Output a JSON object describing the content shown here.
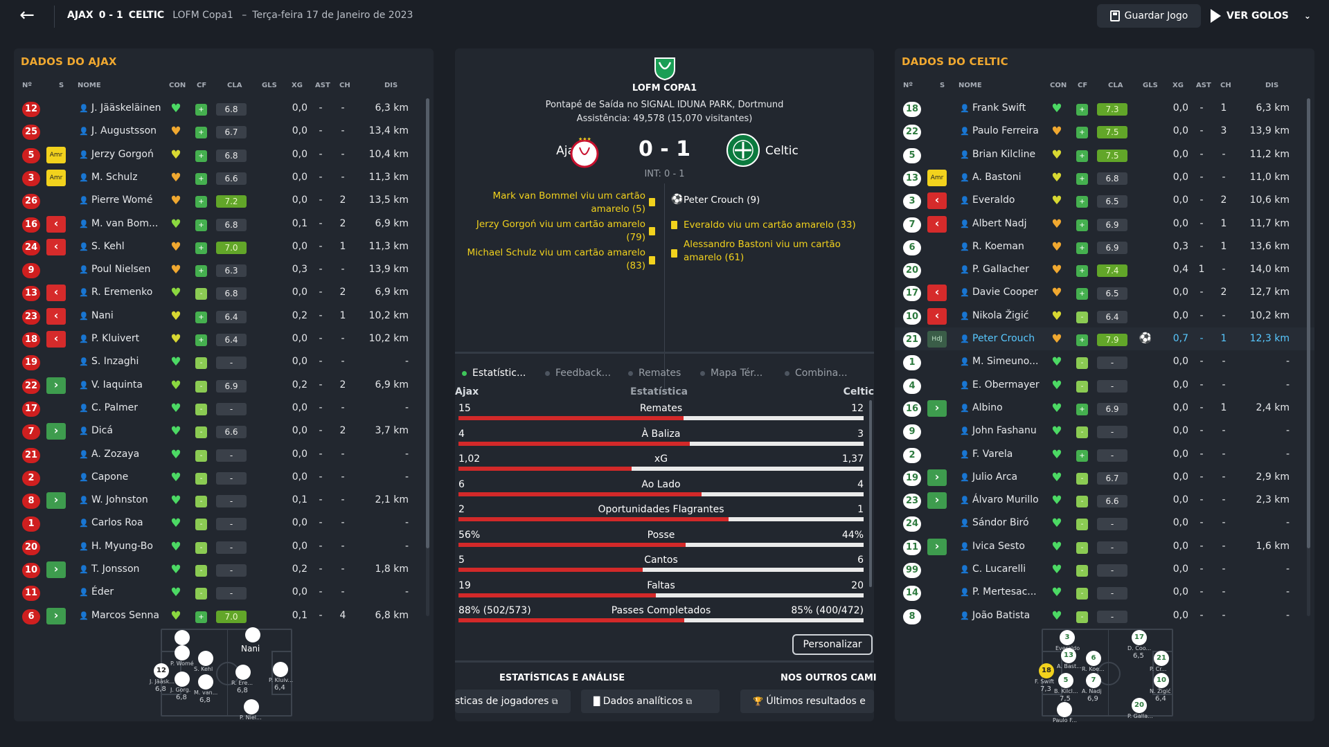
{
  "header": {
    "back_icon": "arrow-left-icon",
    "home": "AJAX",
    "score": "0 - 1",
    "away": "CELTIC",
    "competition": "LOFM Copa1",
    "separator": "–",
    "date": "Terça-feira 17 de Janeiro de 2023",
    "save_label": "Guardar Jogo",
    "goals_label": "VER GOLOS"
  },
  "columns": {
    "num": "Nº",
    "s": "S",
    "name": "NOME",
    "con": "CON",
    "cf": "CF",
    "cla": "CLA",
    "gls": "GLS",
    "xg": "XG",
    "ast": "AST",
    "ch": "CH",
    "dis": "DIS"
  },
  "ajax": {
    "title": "DADOS DO AJAX",
    "players": [
      {
        "num": "12",
        "s": "",
        "name": "J. Jääskeläinen",
        "con": "#4cd964",
        "cf": "+",
        "cla": "6.8",
        "hi": false,
        "gls": "",
        "xg": "0,0",
        "ast": "-",
        "ch": "-",
        "dis": "6,3 km"
      },
      {
        "num": "25",
        "s": "",
        "name": "J. Augustsson",
        "con": "#f0a830",
        "cf": "+",
        "cla": "6.7",
        "hi": false,
        "gls": "",
        "xg": "0,0",
        "ast": "-",
        "ch": "-",
        "dis": "13,4 km"
      },
      {
        "num": "5",
        "s": "Amr",
        "name": "Jerzy Gorgoń",
        "con": "#d8d832",
        "cf": "+",
        "cla": "6.8",
        "hi": false,
        "gls": "",
        "xg": "0,0",
        "ast": "-",
        "ch": "-",
        "dis": "10,4 km"
      },
      {
        "num": "3",
        "s": "Amr",
        "name": "M. Schulz",
        "con": "#f0a830",
        "cf": "+",
        "cla": "6.6",
        "hi": false,
        "gls": "",
        "xg": "0,0",
        "ast": "-",
        "ch": "-",
        "dis": "11,3 km"
      },
      {
        "num": "26",
        "s": "",
        "name": "Pierre Womé",
        "con": "#f0a830",
        "cf": "+",
        "cla": "7.2",
        "hi": true,
        "gls": "",
        "xg": "0,0",
        "ast": "-",
        "ch": "2",
        "dis": "13,5 km"
      },
      {
        "num": "16",
        "s": "<",
        "name": "M. van Bom...",
        "con": "#8bd840",
        "cf": "+",
        "cla": "6.8",
        "hi": false,
        "gls": "",
        "xg": "0,1",
        "ast": "-",
        "ch": "2",
        "dis": "6,9 km"
      },
      {
        "num": "24",
        "s": "<",
        "name": "S. Kehl",
        "con": "#f0a830",
        "cf": "+",
        "cla": "7.0",
        "hi": true,
        "gls": "",
        "xg": "0,0",
        "ast": "-",
        "ch": "1",
        "dis": "11,3 km"
      },
      {
        "num": "9",
        "s": "",
        "name": "Poul Nielsen",
        "con": "#f0a830",
        "cf": "+",
        "cla": "6.3",
        "hi": false,
        "gls": "",
        "xg": "0,3",
        "ast": "-",
        "ch": "-",
        "dis": "13,9 km"
      },
      {
        "num": "13",
        "s": "<",
        "name": "R. Eremenko",
        "con": "#8bd840",
        "cf": "-",
        "cla": "6.8",
        "hi": false,
        "gls": "",
        "xg": "0,0",
        "ast": "-",
        "ch": "2",
        "dis": "6,9 km"
      },
      {
        "num": "23",
        "s": "<",
        "name": "Nani",
        "con": "#d8d832",
        "cf": "+",
        "cla": "6.4",
        "hi": false,
        "gls": "",
        "xg": "0,2",
        "ast": "-",
        "ch": "1",
        "dis": "10,2 km"
      },
      {
        "num": "18",
        "s": "<",
        "name": "P. Kluivert",
        "con": "#d8d832",
        "cf": "+",
        "cla": "6.4",
        "hi": false,
        "gls": "",
        "xg": "0,0",
        "ast": "-",
        "ch": "-",
        "dis": "10,2 km"
      },
      {
        "num": "19",
        "s": "",
        "name": "S. Inzaghi",
        "con": "#4cd964",
        "cf": "-",
        "cla": "-",
        "hi": false,
        "gls": "",
        "xg": "0,0",
        "ast": "-",
        "ch": "-",
        "dis": "-"
      },
      {
        "num": "22",
        "s": ">",
        "name": "V. Iaquinta",
        "con": "#8bd840",
        "cf": "-",
        "cla": "6.9",
        "hi": false,
        "gls": "",
        "xg": "0,2",
        "ast": "-",
        "ch": "2",
        "dis": "6,9 km"
      },
      {
        "num": "17",
        "s": "",
        "name": "C. Palmer",
        "con": "#4cd964",
        "cf": "-",
        "cla": "-",
        "hi": false,
        "gls": "",
        "xg": "0,0",
        "ast": "-",
        "ch": "-",
        "dis": "-"
      },
      {
        "num": "7",
        "s": ">",
        "name": "Dicá",
        "con": "#4cd964",
        "cf": "-",
        "cla": "6.6",
        "hi": false,
        "gls": "",
        "xg": "0,0",
        "ast": "-",
        "ch": "2",
        "dis": "3,7 km"
      },
      {
        "num": "21",
        "s": "",
        "name": "A. Zozaya",
        "con": "#4cd964",
        "cf": "-",
        "cla": "-",
        "hi": false,
        "gls": "",
        "xg": "0,0",
        "ast": "-",
        "ch": "-",
        "dis": "-"
      },
      {
        "num": "2",
        "s": "",
        "name": "Capone",
        "con": "#4cd964",
        "cf": "-",
        "cla": "-",
        "hi": false,
        "gls": "",
        "xg": "0,0",
        "ast": "-",
        "ch": "-",
        "dis": "-"
      },
      {
        "num": "8",
        "s": ">",
        "name": "W. Johnston",
        "con": "#4cd964",
        "cf": "-",
        "cla": "-",
        "hi": false,
        "gls": "",
        "xg": "0,1",
        "ast": "-",
        "ch": "-",
        "dis": "2,1 km"
      },
      {
        "num": "1",
        "s": "",
        "name": "Carlos Roa",
        "con": "#4cd964",
        "cf": "-",
        "cla": "-",
        "hi": false,
        "gls": "",
        "xg": "0,0",
        "ast": "-",
        "ch": "-",
        "dis": "-"
      },
      {
        "num": "20",
        "s": "",
        "name": "H. Myung-Bo",
        "con": "#4cd964",
        "cf": "-",
        "cla": "-",
        "hi": false,
        "gls": "",
        "xg": "0,0",
        "ast": "-",
        "ch": "-",
        "dis": "-"
      },
      {
        "num": "10",
        "s": ">",
        "name": "T. Jonsson",
        "con": "#4cd964",
        "cf": "-",
        "cla": "-",
        "hi": false,
        "gls": "",
        "xg": "0,2",
        "ast": "-",
        "ch": "-",
        "dis": "1,8 km"
      },
      {
        "num": "11",
        "s": "",
        "name": "Éder",
        "con": "#4cd964",
        "cf": "-",
        "cla": "-",
        "hi": false,
        "gls": "",
        "xg": "0,0",
        "ast": "-",
        "ch": "-",
        "dis": "-"
      },
      {
        "num": "6",
        "s": ">",
        "name": "Marcos Senna",
        "con": "#8bd840",
        "cf": "+",
        "cla": "7.0",
        "hi": true,
        "gls": "",
        "xg": "0,1",
        "ast": "-",
        "ch": "4",
        "dis": "6,8 km"
      }
    ],
    "pitch": [
      {
        "n": "",
        "lbl": "",
        "sub": ""
      },
      {
        "n": "",
        "lbl": "Nani",
        "sub": ""
      },
      {
        "n": "12",
        "lbl": "J. Jääsk...",
        "sub": "6,8"
      },
      {
        "n": "",
        "lbl": "P. Womé",
        "sub": ""
      },
      {
        "n": "",
        "lbl": "S. Kehl",
        "sub": ""
      },
      {
        "n": "",
        "lbl": "P. Kluiv...",
        "sub": "6,4"
      },
      {
        "n": "",
        "lbl": "J. Gorg.",
        "sub": "6,8"
      },
      {
        "n": "",
        "lbl": "M. van...",
        "sub": "6,8"
      },
      {
        "n": "",
        "lbl": "R. Ere...",
        "sub": "6,8"
      },
      {
        "n": "",
        "lbl": "P. Niel...",
        "sub": ""
      }
    ]
  },
  "celtic": {
    "title": "DADOS DO CELTIC",
    "players": [
      {
        "num": "18",
        "s": "",
        "name": "Frank Swift",
        "con": "#4cd964",
        "cf": "+",
        "cla": "7.3",
        "hi": true,
        "gls": "",
        "xg": "0,0",
        "ast": "-",
        "ch": "1",
        "dis": "6,3 km",
        "sel": false
      },
      {
        "num": "22",
        "s": "",
        "name": "Paulo Ferreira",
        "con": "#f0a830",
        "cf": "+",
        "cla": "7.5",
        "hi": true,
        "gls": "",
        "xg": "0,0",
        "ast": "-",
        "ch": "3",
        "dis": "13,9 km",
        "sel": false
      },
      {
        "num": "5",
        "s": "",
        "name": "Brian Kilcline",
        "con": "#d8d832",
        "cf": "+",
        "cla": "7.5",
        "hi": true,
        "gls": "",
        "xg": "0,0",
        "ast": "-",
        "ch": "-",
        "dis": "11,2 km",
        "sel": false
      },
      {
        "num": "13",
        "s": "Amr",
        "name": "A. Bastoni",
        "con": "#d8d832",
        "cf": "+",
        "cla": "6.8",
        "hi": false,
        "gls": "",
        "xg": "0,0",
        "ast": "-",
        "ch": "-",
        "dis": "11,0 km",
        "sel": false
      },
      {
        "num": "3",
        "s": "<",
        "name": "Everaldo",
        "con": "#d8d832",
        "cf": "+",
        "cla": "6.5",
        "hi": false,
        "gls": "",
        "xg": "0,0",
        "ast": "-",
        "ch": "2",
        "dis": "10,6 km",
        "sel": false
      },
      {
        "num": "7",
        "s": "<",
        "name": "Albert Nadj",
        "con": "#f0a830",
        "cf": "+",
        "cla": "6.9",
        "hi": false,
        "gls": "",
        "xg": "0,0",
        "ast": "-",
        "ch": "1",
        "dis": "11,7 km",
        "sel": false
      },
      {
        "num": "6",
        "s": "",
        "name": "R. Koeman",
        "con": "#f0a830",
        "cf": "+",
        "cla": "6.9",
        "hi": false,
        "gls": "",
        "xg": "0,3",
        "ast": "-",
        "ch": "1",
        "dis": "13,6 km",
        "sel": false
      },
      {
        "num": "20",
        "s": "",
        "name": "P. Gallacher",
        "con": "#f0a830",
        "cf": "+",
        "cla": "7.4",
        "hi": true,
        "gls": "",
        "xg": "0,4",
        "ast": "1",
        "ch": "-",
        "dis": "14,0 km",
        "sel": false
      },
      {
        "num": "17",
        "s": "<",
        "name": "Davie Cooper",
        "con": "#f0a830",
        "cf": "+",
        "cla": "6.5",
        "hi": false,
        "gls": "",
        "xg": "0,0",
        "ast": "-",
        "ch": "2",
        "dis": "12,7 km",
        "sel": false
      },
      {
        "num": "10",
        "s": "<",
        "name": "Nikola Žigić",
        "con": "#d8d832",
        "cf": "-",
        "cla": "6.4",
        "hi": false,
        "gls": "",
        "xg": "0,0",
        "ast": "-",
        "ch": "-",
        "dis": "10,2 km",
        "sel": false
      },
      {
        "num": "21",
        "s": "HdJ",
        "name": "Peter Crouch",
        "con": "#f0a830",
        "cf": "+",
        "cla": "7.9",
        "hi": true,
        "gls": "⚽",
        "xg": "0,7",
        "ast": "-",
        "ch": "1",
        "dis": "12,3 km",
        "sel": true
      },
      {
        "num": "1",
        "s": "",
        "name": "M. Simeuno...",
        "con": "#4cd964",
        "cf": "-",
        "cla": "-",
        "hi": false,
        "gls": "",
        "xg": "0,0",
        "ast": "-",
        "ch": "-",
        "dis": "-",
        "sel": false
      },
      {
        "num": "4",
        "s": "",
        "name": "E. Obermayer",
        "con": "#4cd964",
        "cf": "-",
        "cla": "-",
        "hi": false,
        "gls": "",
        "xg": "0,0",
        "ast": "-",
        "ch": "-",
        "dis": "-",
        "sel": false
      },
      {
        "num": "16",
        "s": ">",
        "name": "Albino",
        "con": "#4cd964",
        "cf": "+",
        "cla": "6.9",
        "hi": false,
        "gls": "",
        "xg": "0,0",
        "ast": "-",
        "ch": "1",
        "dis": "2,4 km",
        "sel": false
      },
      {
        "num": "9",
        "s": "",
        "name": "John Fashanu",
        "con": "#4cd964",
        "cf": "-",
        "cla": "-",
        "hi": false,
        "gls": "",
        "xg": "0,0",
        "ast": "-",
        "ch": "-",
        "dis": "-",
        "sel": false
      },
      {
        "num": "2",
        "s": "",
        "name": "F. Varela",
        "con": "#4cd964",
        "cf": "+",
        "cla": "-",
        "hi": false,
        "gls": "",
        "xg": "0,0",
        "ast": "-",
        "ch": "-",
        "dis": "-",
        "sel": false
      },
      {
        "num": "19",
        "s": ">",
        "name": "Julio Arca",
        "con": "#4cd964",
        "cf": "-",
        "cla": "6.7",
        "hi": false,
        "gls": "",
        "xg": "0,0",
        "ast": "-",
        "ch": "-",
        "dis": "2,9 km",
        "sel": false
      },
      {
        "num": "23",
        "s": ">",
        "name": "Álvaro Murillo",
        "con": "#4cd964",
        "cf": "-",
        "cla": "6.6",
        "hi": false,
        "gls": "",
        "xg": "0,0",
        "ast": "-",
        "ch": "-",
        "dis": "2,3 km",
        "sel": false
      },
      {
        "num": "24",
        "s": "",
        "name": "Sándor Biró",
        "con": "#4cd964",
        "cf": "-",
        "cla": "-",
        "hi": false,
        "gls": "",
        "xg": "0,0",
        "ast": "-",
        "ch": "-",
        "dis": "-",
        "sel": false
      },
      {
        "num": "11",
        "s": ">",
        "name": "Ivica Sesto",
        "con": "#4cd964",
        "cf": "-",
        "cla": "-",
        "hi": false,
        "gls": "",
        "xg": "0,0",
        "ast": "-",
        "ch": "-",
        "dis": "1,6 km",
        "sel": false
      },
      {
        "num": "99",
        "s": "",
        "name": "C. Lucarelli",
        "con": "#4cd964",
        "cf": "-",
        "cla": "-",
        "hi": false,
        "gls": "",
        "xg": "0,0",
        "ast": "-",
        "ch": "-",
        "dis": "-",
        "sel": false
      },
      {
        "num": "14",
        "s": "",
        "name": "P. Mertesac...",
        "con": "#4cd964",
        "cf": "-",
        "cla": "-",
        "hi": false,
        "gls": "",
        "xg": "0,0",
        "ast": "-",
        "ch": "-",
        "dis": "-",
        "sel": false
      },
      {
        "num": "8",
        "s": "",
        "name": "João Batista",
        "con": "#4cd964",
        "cf": "-",
        "cla": "-",
        "hi": false,
        "gls": "",
        "xg": "0,0",
        "ast": "-",
        "ch": "-",
        "dis": "-",
        "sel": false
      }
    ],
    "pitch": [
      {
        "n": "3",
        "lbl": "Everaldo",
        "sub": ""
      },
      {
        "n": "17",
        "lbl": "D. Coo...",
        "sub": "6,5"
      },
      {
        "n": "13",
        "lbl": "A. Bast...",
        "sub": ""
      },
      {
        "n": "6",
        "lbl": "R. Koe...",
        "sub": ""
      },
      {
        "n": "21",
        "lbl": "P. Cr...",
        "sub": ""
      },
      {
        "n": "18",
        "lbl": "F. Swift",
        "sub": "7,3"
      },
      {
        "n": "5",
        "lbl": "B. Kilcl...",
        "sub": "7,5"
      },
      {
        "n": "7",
        "lbl": "A. Nadj",
        "sub": "6,9"
      },
      {
        "n": "10",
        "lbl": "N. Žigić",
        "sub": "6,4"
      },
      {
        "n": "20",
        "lbl": "P. Galla...",
        "sub": ""
      },
      {
        "n": "",
        "lbl": "Paulo F...",
        "sub": ""
      }
    ]
  },
  "center": {
    "competition": "LOFM COPA1",
    "kickoff": "Pontapé de Saída no SIGNAL IDUNA PARK, Dortmund",
    "attendance": "Assistência: 49,578 (15,070 visitantes)",
    "home": "Ajax",
    "away": "Celtic",
    "score": "0 - 1",
    "ht": "INT: 0 - 1",
    "home_events": [
      "Mark van Bommel viu um cartão amarelo (5)",
      "Jerzy Gorgoń viu um cartão amarelo (79)",
      "Michael Schulz viu um cartão amarelo (83)"
    ],
    "away_events": [
      "Peter Crouch (9)",
      "Everaldo viu um cartão amarelo (33)",
      "Alessandro Bastoni viu um cartão amarelo (61)"
    ],
    "tabs": [
      "Estatístic...",
      "Feedback...",
      "Remates",
      "Mapa Tér...",
      "Combina..."
    ],
    "stat_header": {
      "home": "Ajax",
      "mid": "Estatística",
      "away": "Celtic"
    },
    "stats": [
      {
        "h": "15",
        "label": "Remates",
        "a": "12",
        "hv": 15,
        "av": 12
      },
      {
        "h": "4",
        "label": "À Baliza",
        "a": "3",
        "hv": 4,
        "av": 3
      },
      {
        "h": "1,02",
        "label": "xG",
        "a": "1,37",
        "hv": 1.02,
        "av": 1.37
      },
      {
        "h": "6",
        "label": "Ao Lado",
        "a": "4",
        "hv": 6,
        "av": 4
      },
      {
        "h": "2",
        "label": "Oportunidades Flagrantes",
        "a": "1",
        "hv": 2,
        "av": 1
      },
      {
        "h": "56%",
        "label": "Posse",
        "a": "44%",
        "hv": 56,
        "av": 44
      },
      {
        "h": "5",
        "label": "Cantos",
        "a": "6",
        "hv": 5,
        "av": 6
      },
      {
        "h": "19",
        "label": "Faltas",
        "a": "20",
        "hv": 19,
        "av": 20
      },
      {
        "h": "88% (502/573)",
        "label": "Passes Completados",
        "a": "85% (400/472)",
        "hv": 502,
        "av": 400
      }
    ],
    "customize": "Personalizar",
    "section1": "ESTATÍSTICAS E ANÁLISE",
    "section2": "NOS OUTROS CAMI",
    "link1": "sticas de jogadores",
    "link2": "Dados analíticos",
    "link3": "Últimos resultados e"
  }
}
